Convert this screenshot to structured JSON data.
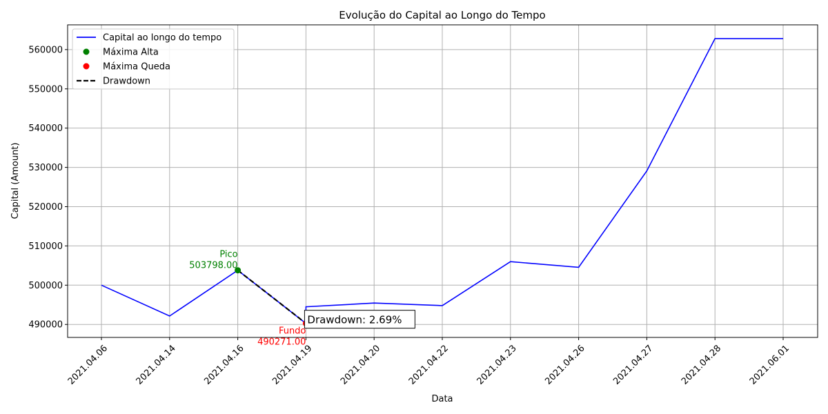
{
  "chart_data": {
    "type": "line",
    "title": "Evolução do Capital ao Longo do Tempo",
    "xlabel": "Data",
    "ylabel": "Capital (Amount)",
    "categories": [
      "2021.04.06",
      "2021.04.14",
      "2021.04.16",
      "2021.04.19",
      "2021.04.20",
      "2021.04.22",
      "2021.04.23",
      "2021.04.26",
      "2021.04.27",
      "2021.04.28",
      "2021.06.01"
    ],
    "ylim": [
      486700,
      566300
    ],
    "yticks": [
      490000,
      500000,
      510000,
      520000,
      530000,
      540000,
      550000,
      560000
    ],
    "ytick_labels": [
      "490000",
      "500000",
      "510000",
      "520000",
      "530000",
      "540000",
      "550000",
      "560000"
    ],
    "grid": true,
    "legend_position": "top-left",
    "series": [
      {
        "name": "Capital ao longo do tempo",
        "color": "#0000ff",
        "points": [
          {
            "x": 0,
            "y": 500000
          },
          {
            "x": 1,
            "y": 492150
          },
          {
            "x": 2,
            "y": 503798
          },
          {
            "x": 3,
            "y": 490271
          },
          {
            "x": 3,
            "y": 494500
          },
          {
            "x": 4,
            "y": 495450
          },
          {
            "x": 5,
            "y": 494800
          },
          {
            "x": 6,
            "y": 506000
          },
          {
            "x": 7,
            "y": 504550
          },
          {
            "x": 8,
            "y": 529100
          },
          {
            "x": 9,
            "y": 562800
          },
          {
            "x": 10,
            "y": 562800
          }
        ]
      }
    ],
    "peak": {
      "legend": "Máxima Alta",
      "x": 2,
      "y": 503798,
      "label_line1": "Pico",
      "label_line2": "503798.00",
      "color": "#008000"
    },
    "trough": {
      "legend": "Máxima Queda",
      "x": 3,
      "y": 490271,
      "label_line1": "Fundo",
      "label_line2": "490271.00",
      "color": "#ff0000"
    },
    "drawdown": {
      "legend": "Drawdown",
      "color": "#000000",
      "text": "Drawdown: 2.69%"
    }
  }
}
